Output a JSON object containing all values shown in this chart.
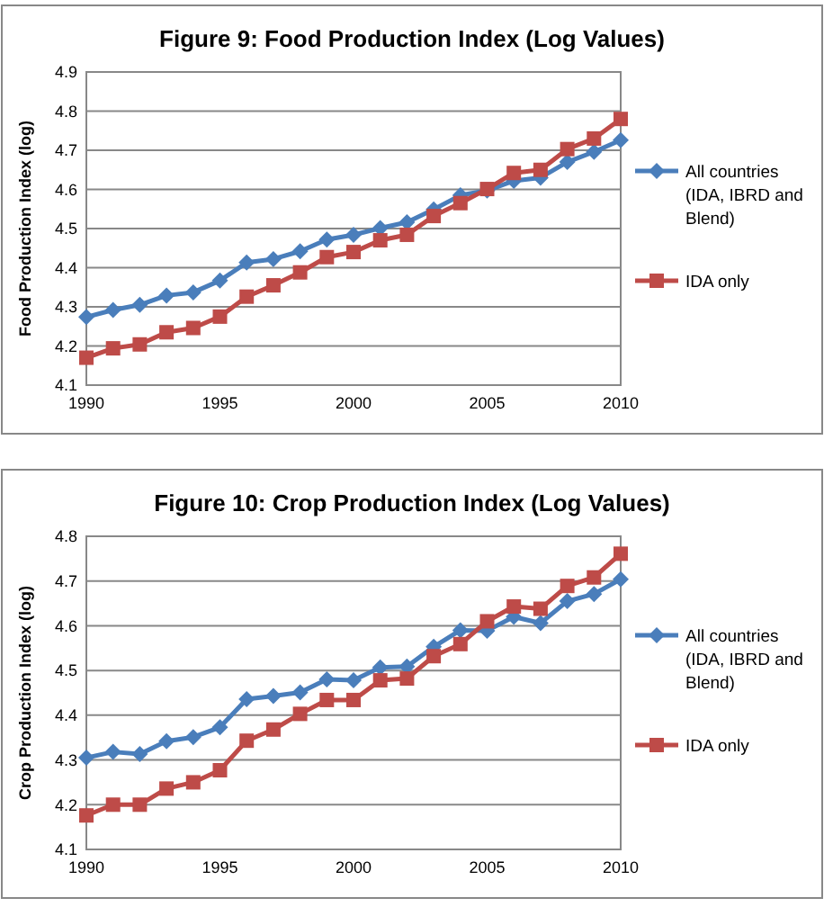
{
  "chart_data": [
    {
      "type": "line",
      "title": "Figure 9: Food Production Index (Log Values)",
      "ylabel": "Food Production Index (log)",
      "x": [
        1990,
        1991,
        1992,
        1993,
        1994,
        1995,
        1996,
        1997,
        1998,
        1999,
        2000,
        2001,
        2002,
        2003,
        2004,
        2005,
        2006,
        2007,
        2008,
        2009,
        2010
      ],
      "series": [
        {
          "name": "All countries (IDA, IBRD and Blend)",
          "color": "#4a7ebb",
          "marker": "diamond",
          "values": [
            4.274,
            4.292,
            4.305,
            4.329,
            4.337,
            4.367,
            4.413,
            4.422,
            4.442,
            4.472,
            4.484,
            4.501,
            4.516,
            4.549,
            4.585,
            4.597,
            4.622,
            4.63,
            4.67,
            4.696,
            4.726
          ]
        },
        {
          "name": "IDA only",
          "color": "#be4b48",
          "marker": "square",
          "values": [
            4.17,
            4.194,
            4.204,
            4.235,
            4.246,
            4.275,
            4.326,
            4.355,
            4.388,
            4.427,
            4.44,
            4.47,
            4.484,
            4.532,
            4.565,
            4.601,
            4.642,
            4.65,
            4.703,
            4.73,
            4.78
          ]
        }
      ],
      "xlim": [
        1990,
        2010
      ],
      "xticks": [
        1990,
        1995,
        2000,
        2005,
        2010
      ],
      "ylim": [
        4.1,
        4.9
      ],
      "yticks": [
        4.1,
        4.2,
        4.3,
        4.4,
        4.5,
        4.6,
        4.7,
        4.8,
        4.9
      ],
      "grid": "y",
      "legend": "right"
    },
    {
      "type": "line",
      "title": "Figure 10: Crop Production Index (Log Values)",
      "ylabel": "Crop Production Index (log)",
      "x": [
        1990,
        1991,
        1992,
        1993,
        1994,
        1995,
        1996,
        1997,
        1998,
        1999,
        2000,
        2001,
        2002,
        2003,
        2004,
        2005,
        2006,
        2007,
        2008,
        2009,
        2010
      ],
      "series": [
        {
          "name": "All countries (IDA, IBRD and Blend)",
          "color": "#4a7ebb",
          "marker": "diamond",
          "values": [
            4.305,
            4.318,
            4.313,
            4.342,
            4.351,
            4.373,
            4.436,
            4.443,
            4.451,
            4.48,
            4.478,
            4.507,
            4.509,
            4.553,
            4.59,
            4.589,
            4.62,
            4.606,
            4.655,
            4.671,
            4.704
          ]
        },
        {
          "name": "IDA only",
          "color": "#be4b48",
          "marker": "square",
          "values": [
            4.176,
            4.2,
            4.2,
            4.236,
            4.25,
            4.277,
            4.343,
            4.368,
            4.403,
            4.434,
            4.434,
            4.478,
            4.482,
            4.532,
            4.559,
            4.61,
            4.643,
            4.638,
            4.689,
            4.708,
            4.761
          ]
        }
      ],
      "xlim": [
        1990,
        2010
      ],
      "xticks": [
        1990,
        1995,
        2000,
        2005,
        2010
      ],
      "ylim": [
        4.1,
        4.8
      ],
      "yticks": [
        4.1,
        4.2,
        4.3,
        4.4,
        4.5,
        4.6,
        4.7,
        4.8
      ],
      "grid": "y",
      "legend": "right"
    }
  ]
}
